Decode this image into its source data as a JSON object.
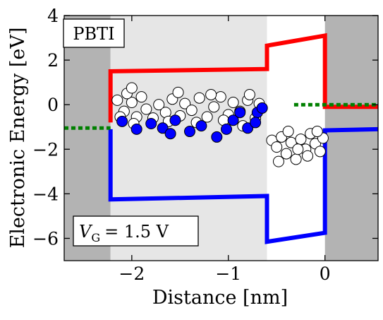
{
  "chart_data": {
    "type": "line",
    "xlabel": "Distance [nm]",
    "ylabel": "Electronic Energy [eV]",
    "xlim": [
      -2.7,
      0.55
    ],
    "ylim": [
      -7,
      4
    ],
    "xticks": [
      {
        "value": -2,
        "label": "−2"
      },
      {
        "value": -1,
        "label": "−1"
      },
      {
        "value": 0,
        "label": "0"
      }
    ],
    "yticks": [
      {
        "value": 4,
        "label": "4"
      },
      {
        "value": 2,
        "label": "2"
      },
      {
        "value": 0,
        "label": "0"
      },
      {
        "value": -2,
        "label": "−2"
      },
      {
        "value": -4,
        "label": "−4"
      },
      {
        "value": -6,
        "label": "−6"
      }
    ],
    "annotations": {
      "top_left_box": "PBTI",
      "bottom_left_box": {
        "symbol": "V",
        "subscript": "G",
        "value_text": "= 1.5 V"
      }
    },
    "regions": [
      {
        "x": [
          -2.7,
          -2.22
        ],
        "color": "#b3b3b3"
      },
      {
        "x": [
          -2.22,
          -0.6
        ],
        "color": "#e6e6e6"
      },
      {
        "x": [
          -0.6,
          0.0
        ],
        "color": "#ffffff"
      },
      {
        "x": [
          0.0,
          0.55
        ],
        "color": "#b3b3b3"
      }
    ],
    "series": [
      {
        "role": "conduction-band",
        "color": "#ff0000",
        "dash": "solid",
        "points": [
          [
            -2.22,
            -0.8
          ],
          [
            -2.22,
            1.5
          ],
          [
            -0.6,
            1.6
          ],
          [
            -0.6,
            2.65
          ],
          [
            0.0,
            3.1
          ],
          [
            0.0,
            -0.1
          ],
          [
            0.55,
            -0.1
          ]
        ]
      },
      {
        "role": "valence-band",
        "color": "#0000ff",
        "dash": "solid",
        "points": [
          [
            -2.22,
            -1.1
          ],
          [
            -2.22,
            -4.25
          ],
          [
            -0.6,
            -4.1
          ],
          [
            -0.6,
            -6.15
          ],
          [
            0.0,
            -5.75
          ],
          [
            0.0,
            -1.15
          ],
          [
            0.55,
            -1.1
          ]
        ]
      },
      {
        "role": "fermi-level-left",
        "color": "#008000",
        "dash": "dotted",
        "points": [
          [
            -2.7,
            -1.05
          ],
          [
            -2.22,
            -1.05
          ]
        ]
      },
      {
        "role": "fermi-level-right",
        "color": "#008000",
        "dash": "dotted",
        "points": [
          [
            -0.32,
            0.0
          ],
          [
            0.55,
            0.0
          ]
        ]
      }
    ],
    "scatter_groups": [
      {
        "role": "empty-defects",
        "fill": "#ffffff",
        "stroke": "#000000",
        "points": [
          [
            -2.15,
            0.2
          ],
          [
            -2.08,
            -0.3
          ],
          [
            -2.0,
            0.1
          ],
          [
            -1.95,
            -0.55
          ],
          [
            -1.9,
            0.35
          ],
          [
            -1.85,
            -0.2
          ],
          [
            -1.78,
            -0.6
          ],
          [
            -1.72,
            0.0
          ],
          [
            -1.65,
            -0.35
          ],
          [
            -1.58,
            0.25
          ],
          [
            -1.5,
            -0.5
          ],
          [
            -1.45,
            0.05
          ],
          [
            -1.38,
            -0.25
          ],
          [
            -1.3,
            0.3
          ],
          [
            -1.22,
            -0.55
          ],
          [
            -1.15,
            -0.1
          ],
          [
            -1.08,
            0.35
          ],
          [
            -1.0,
            -0.45
          ],
          [
            -0.95,
            0.1
          ],
          [
            -0.88,
            -0.3
          ],
          [
            -0.8,
            0.2
          ],
          [
            -0.72,
            -0.6
          ],
          [
            -0.68,
            0.05
          ],
          [
            -2.12,
            -0.55
          ],
          [
            -1.98,
            -0.85
          ],
          [
            -1.62,
            -0.75
          ],
          [
            -1.33,
            -0.8
          ],
          [
            -1.05,
            -0.7
          ],
          [
            -0.85,
            -0.95
          ],
          [
            -2.05,
            0.5
          ],
          [
            -1.52,
            0.55
          ],
          [
            -1.18,
            0.45
          ],
          [
            -0.78,
            0.45
          ],
          [
            -2.0,
            0.75
          ],
          [
            -0.55,
            -1.6
          ],
          [
            -0.5,
            -1.9
          ],
          [
            -0.45,
            -1.45
          ],
          [
            -0.4,
            -2.2
          ],
          [
            -0.35,
            -1.7
          ],
          [
            -0.3,
            -2.45
          ],
          [
            -0.25,
            -1.55
          ],
          [
            -0.2,
            -2.0
          ],
          [
            -0.15,
            -1.3
          ],
          [
            -0.1,
            -1.75
          ],
          [
            -0.05,
            -2.1
          ],
          [
            -0.02,
            -1.5
          ],
          [
            -0.48,
            -2.55
          ],
          [
            -0.38,
            -1.2
          ],
          [
            -0.28,
            -2.0
          ],
          [
            -0.18,
            -2.3
          ],
          [
            -0.08,
            -1.2
          ]
        ]
      },
      {
        "role": "filled-defects",
        "fill": "#0000ff",
        "stroke": "#000000",
        "points": [
          [
            -2.1,
            -0.75
          ],
          [
            -1.95,
            -1.1
          ],
          [
            -1.8,
            -0.85
          ],
          [
            -1.68,
            -1.05
          ],
          [
            -1.55,
            -0.7
          ],
          [
            -1.4,
            -1.2
          ],
          [
            -1.28,
            -0.95
          ],
          [
            -1.12,
            -1.45
          ],
          [
            -1.02,
            -1.1
          ],
          [
            -0.95,
            -0.7
          ],
          [
            -0.88,
            -0.35
          ],
          [
            -0.8,
            -1.05
          ],
          [
            -0.7,
            -0.35
          ],
          [
            -0.65,
            -0.15
          ],
          [
            -0.72,
            -0.8
          ],
          [
            -1.6,
            -1.3
          ]
        ]
      }
    ]
  }
}
